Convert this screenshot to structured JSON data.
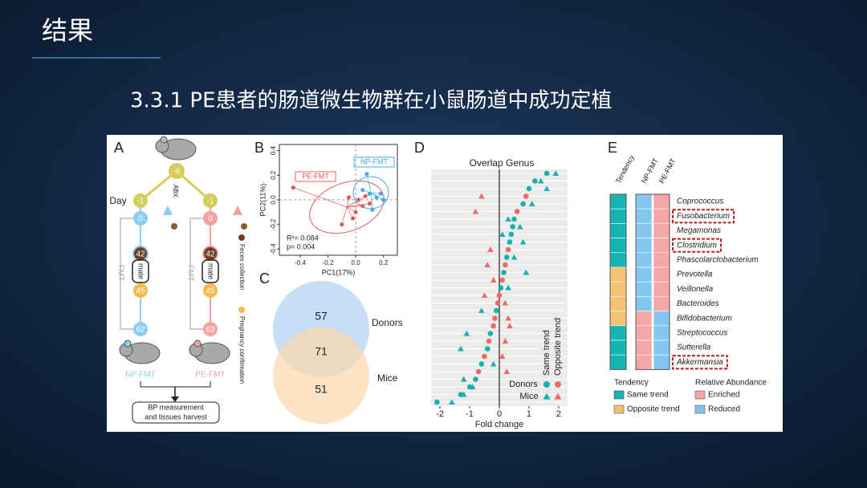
{
  "header": {
    "title": "结果",
    "subtitle": "3.3.1 PE患者的肠道微生物群在小鼠肠道中成功定植"
  },
  "figure": {
    "panel_a": {
      "label": "A",
      "day_title": "Day",
      "start": -6,
      "abx": "ABX",
      "steps": [
        -1,
        0,
        42,
        45,
        62
      ],
      "mate": "mate",
      "fmt": "FMT",
      "groups": [
        "NP-FMT",
        "PE-FMT"
      ],
      "legend": [
        "Feces collection",
        "Pregnancy confirmation"
      ],
      "outcome": [
        "BP measurement",
        "and tissues harvest"
      ]
    },
    "panel_b": {
      "label": "B",
      "x_label": "PC1(17%)",
      "y_label": "PC2(11%)",
      "xlim": [
        -0.55,
        0.3
      ],
      "ylim": [
        -0.45,
        0.45
      ],
      "xticks": [
        -0.4,
        -0.2,
        {
          "value": 0,
          "label": "0.0"
        },
        0.2
      ],
      "yticks": [
        -0.4,
        -0.2,
        {
          "value": 0,
          "label": "0.0"
        },
        0.2,
        0.4
      ],
      "stats": [
        "R²= 0.084",
        "p= 0.004"
      ],
      "series": [
        {
          "name": "PE-FMT",
          "color": "#e8585a",
          "x": [
            -0.45,
            -0.1,
            -0.05,
            0.0,
            0.02,
            0.05,
            0.1,
            -0.02,
            0.07
          ],
          "y": [
            0.1,
            -0.2,
            0.02,
            -0.1,
            0.0,
            -0.05,
            -0.03,
            -0.15,
            0.03
          ]
        },
        {
          "name": "NP-FMT",
          "color": "#4aa8e8",
          "x": [
            0.08,
            0.1,
            0.15,
            0.12,
            0.18,
            0.05,
            0.2
          ],
          "y": [
            0.21,
            0.05,
            0.02,
            -0.08,
            0.05,
            0.08,
            0.0
          ]
        }
      ]
    },
    "panel_c": {
      "label": "C",
      "donors_only": 57,
      "overlap": 71,
      "mice_only": 51,
      "sets": [
        "Donors",
        "Mice"
      ]
    },
    "panel_d": {
      "label": "D",
      "title": "Overlap Genus",
      "x_label": "Fold change",
      "xlim": [
        -2.3,
        2.3
      ],
      "xticks": [
        -2,
        -1,
        0,
        1,
        2
      ],
      "sources": [
        "Donors",
        "Mice"
      ],
      "trends": [
        {
          "name": "Same trend",
          "color": "#17b0ae"
        },
        {
          "name": "Opposite trend",
          "color": "#ee6a66"
        }
      ],
      "donors": [
        1.6,
        1.2,
        1.0,
        0.9,
        0.8,
        0.6,
        0.5,
        0.45,
        0.4,
        0.35,
        0.3,
        0.25,
        0.2,
        0.15,
        0.1,
        0.05,
        0,
        -0.05,
        -0.1,
        -0.15,
        -0.2,
        -0.3,
        -0.35,
        -0.4,
        -0.5,
        -0.6,
        -0.7,
        -0.8,
        -1.0,
        -1.3,
        -2.1
      ],
      "mice": [
        1.9,
        1.4,
        1.6,
        -0.6,
        1.1,
        -0.8,
        0.3,
        0.7,
        0.1,
        0.8,
        -0.3,
        0.5,
        -0.4,
        0.9,
        -0.2,
        0.3,
        -0.5,
        0.2,
        -0.6,
        0.3,
        0.35,
        -1.1,
        0.2,
        -1.3,
        0.1,
        -0.2,
        0.25,
        -1.2,
        -0.9,
        -1.2,
        -1.6
      ],
      "trend": [
        0,
        0,
        0,
        1,
        0,
        1,
        0,
        0,
        0,
        0,
        1,
        0,
        1,
        0,
        1,
        0,
        1,
        1,
        0,
        1,
        1,
        0,
        1,
        0,
        1,
        0,
        1,
        0,
        0,
        0,
        0
      ]
    },
    "panel_e": {
      "label": "E",
      "columns": [
        "Tendency",
        "NP-FMT",
        "PE-FMT"
      ],
      "tendency_legend": {
        "title": "Tendency",
        "items": [
          {
            "name": "Same trend",
            "color": "#16b3b3"
          },
          {
            "name": "Opposite trend",
            "color": "#f5c173"
          }
        ]
      },
      "abundance_legend": {
        "title": "Relative Abundance",
        "items": [
          {
            "name": "Enriched",
            "color": "#f5a6a6"
          },
          {
            "name": "Reduced",
            "color": "#84c6f0"
          }
        ]
      },
      "rows": [
        {
          "genus": "Coprococcus",
          "tendency": 0,
          "np": 1,
          "pe": 0,
          "highlighted": false
        },
        {
          "genus": "Fusobacterium",
          "tendency": 0,
          "np": 1,
          "pe": 0,
          "highlighted": true
        },
        {
          "genus": "Megamonas",
          "tendency": 0,
          "np": 1,
          "pe": 0,
          "highlighted": false
        },
        {
          "genus": "Clostridium",
          "tendency": 0,
          "np": 1,
          "pe": 0,
          "highlighted": true
        },
        {
          "genus": "Phascolarctobacterium",
          "tendency": 0,
          "np": 1,
          "pe": 0,
          "highlighted": false
        },
        {
          "genus": "Prevotella",
          "tendency": 1,
          "np": 1,
          "pe": 0,
          "highlighted": false
        },
        {
          "genus": "Veillonella",
          "tendency": 1,
          "np": 1,
          "pe": 0,
          "highlighted": false
        },
        {
          "genus": "Bacteroides",
          "tendency": 1,
          "np": 1,
          "pe": 0,
          "highlighted": false
        },
        {
          "genus": "Bifidobacterium",
          "tendency": 1,
          "np": 0,
          "pe": 1,
          "highlighted": false
        },
        {
          "genus": "Streptococcus",
          "tendency": 0,
          "np": 0,
          "pe": 1,
          "highlighted": false
        },
        {
          "genus": "Sutterella",
          "tendency": 0,
          "np": 0,
          "pe": 1,
          "highlighted": false
        },
        {
          "genus": "Akkermansia",
          "tendency": 0,
          "np": 0,
          "pe": 1,
          "highlighted": true
        }
      ]
    }
  }
}
